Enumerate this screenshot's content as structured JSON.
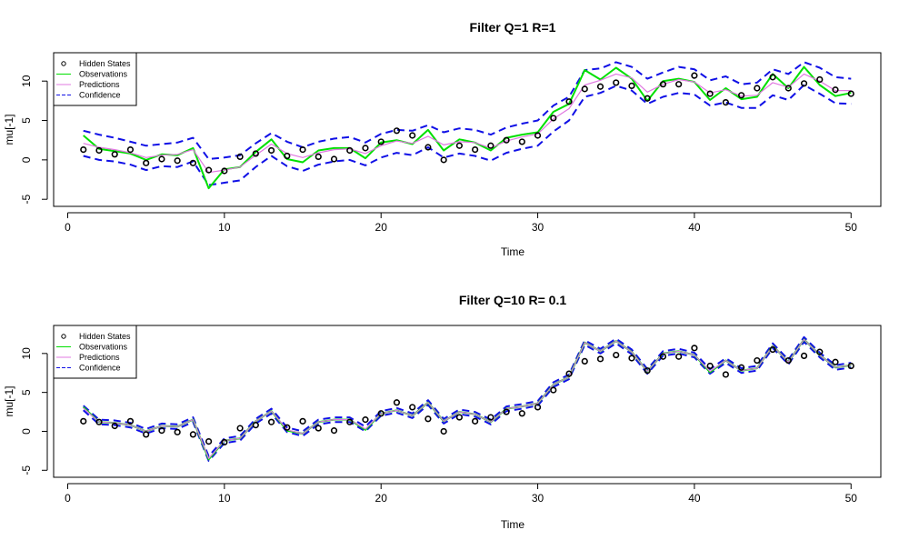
{
  "colors": {
    "hidden_states": "#000000",
    "observations": "#00e000",
    "predictions": "#e078e0",
    "confidence": "#1010e6",
    "frame": "#000000"
  },
  "chart_data": [
    {
      "type": "line",
      "title": "Filter Q=1 R=1",
      "xlabel": "Time",
      "ylabel": "mu[-1]",
      "xlim": [
        -0.9,
        51.9
      ],
      "ylim": [
        -5.9,
        13.6
      ],
      "xticks": [
        0,
        10,
        20,
        30,
        40,
        50
      ],
      "yticks": [
        -5,
        0,
        5,
        10
      ],
      "legend": {
        "position": "top-left",
        "entries": [
          {
            "name": "Hidden States",
            "style": "point"
          },
          {
            "name": "Observations",
            "style": "line"
          },
          {
            "name": "Predictions",
            "style": "line"
          },
          {
            "name": "Confidence",
            "style": "dashed"
          }
        ]
      },
      "x": [
        1,
        2,
        3,
        4,
        5,
        6,
        7,
        8,
        9,
        10,
        11,
        12,
        13,
        14,
        15,
        16,
        17,
        18,
        19,
        20,
        21,
        22,
        23,
        24,
        25,
        26,
        27,
        28,
        29,
        30,
        31,
        32,
        33,
        34,
        35,
        36,
        37,
        38,
        39,
        40,
        41,
        42,
        43,
        44,
        45,
        46,
        47,
        48,
        49,
        50
      ],
      "series": [
        {
          "name": "Hidden States",
          "style": "point",
          "values": [
            1.3,
            1.2,
            0.7,
            1.3,
            -0.4,
            0.1,
            -0.1,
            -0.4,
            -1.3,
            -1.4,
            0.4,
            0.8,
            1.2,
            0.5,
            1.3,
            0.4,
            0.1,
            1.2,
            1.5,
            2.3,
            3.7,
            3.1,
            1.6,
            0.0,
            1.8,
            1.3,
            1.8,
            2.5,
            2.3,
            3.1,
            5.3,
            7.4,
            9.0,
            9.3,
            9.8,
            9.4,
            7.8,
            9.6,
            9.6,
            10.7,
            8.4,
            7.3,
            8.2,
            9.1,
            10.5,
            9.1,
            9.7,
            10.2,
            8.9,
            8.4
          ]
        },
        {
          "name": "Observations",
          "style": "line",
          "values": [
            3.1,
            1.4,
            1.1,
            0.8,
            0.0,
            0.7,
            0.6,
            1.5,
            -3.6,
            -1.2,
            -0.9,
            1.0,
            2.6,
            0.1,
            -0.3,
            1.2,
            1.5,
            1.5,
            0.2,
            2.2,
            2.5,
            2.0,
            3.8,
            1.2,
            2.6,
            2.2,
            1.2,
            2.8,
            3.2,
            3.5,
            6.1,
            7.1,
            11.4,
            10.2,
            11.7,
            10.3,
            7.5,
            10.0,
            10.3,
            9.9,
            7.6,
            9.1,
            7.7,
            8.0,
            10.9,
            9.1,
            11.8,
            9.5,
            8.1,
            8.5
          ]
        },
        {
          "name": "Predictions",
          "style": "line",
          "values": [
            2.1,
            1.6,
            1.3,
            0.9,
            0.3,
            0.6,
            0.7,
            1.3,
            -1.6,
            -1.3,
            -0.9,
            0.6,
            2.0,
            0.8,
            0.3,
            0.9,
            1.3,
            1.4,
            0.8,
            1.8,
            2.4,
            2.1,
            3.0,
            1.9,
            2.3,
            2.2,
            1.5,
            2.4,
            2.9,
            3.3,
            5.2,
            6.5,
            9.5,
            10.1,
            10.9,
            10.4,
            8.6,
            9.6,
            10.2,
            9.9,
            8.5,
            8.9,
            8.1,
            8.2,
            9.8,
            9.2,
            10.9,
            10.0,
            8.8,
            8.8
          ]
        },
        {
          "name": "Confidence",
          "style": "dashed",
          "values": [
            3.7,
            3.2,
            2.8,
            2.3,
            1.8,
            2.0,
            2.2,
            2.8,
            0.1,
            0.3,
            0.6,
            2.1,
            3.4,
            2.3,
            1.6,
            2.3,
            2.7,
            2.9,
            2.2,
            3.3,
            3.8,
            3.7,
            4.4,
            3.5,
            4.0,
            3.8,
            3.2,
            4.1,
            4.6,
            5.0,
            6.9,
            8.0,
            11.4,
            11.6,
            12.4,
            11.8,
            10.3,
            11.1,
            11.8,
            11.5,
            10.1,
            10.6,
            9.6,
            9.8,
            11.5,
            10.9,
            12.4,
            11.7,
            10.5,
            10.3
          ]
        },
        {
          "name": "Confidence",
          "style": "dashed",
          "values": [
            0.5,
            0.0,
            -0.2,
            -0.6,
            -1.3,
            -0.8,
            -0.9,
            -0.2,
            -3.2,
            -2.9,
            -2.6,
            -0.9,
            0.5,
            -0.8,
            -1.4,
            -0.6,
            -0.2,
            0.0,
            -0.7,
            0.3,
            0.9,
            0.6,
            1.6,
            0.3,
            0.8,
            0.5,
            -0.1,
            0.9,
            1.4,
            1.8,
            3.6,
            5.0,
            8.0,
            8.5,
            9.4,
            8.8,
            7.1,
            8.0,
            8.5,
            8.3,
            6.9,
            7.3,
            6.6,
            6.6,
            8.2,
            7.6,
            9.5,
            8.4,
            7.2,
            7.1
          ]
        }
      ]
    },
    {
      "type": "line",
      "title": "Filter Q=10 R= 0.1",
      "xlabel": "Time",
      "ylabel": "mu[-1]",
      "xlim": [
        -0.9,
        51.9
      ],
      "ylim": [
        -5.9,
        13.6
      ],
      "xticks": [
        0,
        10,
        20,
        30,
        40,
        50
      ],
      "yticks": [
        -5,
        0,
        5,
        10
      ],
      "legend": {
        "position": "top-left",
        "entries": [
          {
            "name": "Hidden States",
            "style": "point"
          },
          {
            "name": "Observations",
            "style": "line"
          },
          {
            "name": "Predictions",
            "style": "line"
          },
          {
            "name": "Confidence",
            "style": "dashed"
          }
        ]
      },
      "x": [
        1,
        2,
        3,
        4,
        5,
        6,
        7,
        8,
        9,
        10,
        11,
        12,
        13,
        14,
        15,
        16,
        17,
        18,
        19,
        20,
        21,
        22,
        23,
        24,
        25,
        26,
        27,
        28,
        29,
        30,
        31,
        32,
        33,
        34,
        35,
        36,
        37,
        38,
        39,
        40,
        41,
        42,
        43,
        44,
        45,
        46,
        47,
        48,
        49,
        50
      ],
      "series": [
        {
          "name": "Hidden States",
          "style": "point",
          "values": [
            1.3,
            1.2,
            0.7,
            1.3,
            -0.4,
            0.1,
            -0.1,
            -0.4,
            -1.3,
            -1.4,
            0.4,
            0.8,
            1.2,
            0.5,
            1.3,
            0.4,
            0.1,
            1.2,
            1.5,
            2.3,
            3.7,
            3.1,
            1.6,
            0.0,
            1.8,
            1.3,
            1.8,
            2.5,
            2.3,
            3.1,
            5.3,
            7.4,
            9.0,
            9.3,
            9.8,
            9.4,
            7.8,
            9.6,
            9.6,
            10.7,
            8.4,
            7.3,
            8.2,
            9.1,
            10.5,
            9.1,
            9.7,
            10.2,
            8.9,
            8.4
          ]
        },
        {
          "name": "Observations",
          "style": "line",
          "values": [
            3.1,
            1.2,
            1.1,
            0.8,
            0.0,
            0.7,
            0.6,
            1.5,
            -3.6,
            -1.2,
            -0.9,
            1.3,
            2.6,
            0.1,
            -0.3,
            1.2,
            1.5,
            1.5,
            0.2,
            2.3,
            2.7,
            2.0,
            3.7,
            1.3,
            2.5,
            2.2,
            1.2,
            2.9,
            3.2,
            3.6,
            6.0,
            7.0,
            11.4,
            10.3,
            11.6,
            10.2,
            7.7,
            10.0,
            10.3,
            9.8,
            7.6,
            9.1,
            7.8,
            8.1,
            11.0,
            8.9,
            11.8,
            9.8,
            8.2,
            8.5
          ]
        },
        {
          "name": "Predictions",
          "style": "line",
          "values": [
            3.0,
            1.2,
            1.1,
            0.8,
            0.0,
            0.7,
            0.6,
            1.5,
            -3.5,
            -1.2,
            -0.9,
            1.3,
            2.6,
            0.2,
            -0.3,
            1.2,
            1.5,
            1.5,
            0.3,
            2.3,
            2.7,
            2.0,
            3.7,
            1.3,
            2.5,
            2.2,
            1.2,
            2.9,
            3.2,
            3.6,
            6.0,
            7.0,
            11.4,
            10.3,
            11.6,
            10.2,
            7.7,
            10.0,
            10.3,
            9.8,
            7.7,
            9.1,
            7.8,
            8.1,
            11.0,
            8.9,
            11.8,
            9.8,
            8.2,
            8.5
          ]
        },
        {
          "name": "Confidence",
          "style": "dashed",
          "values": [
            3.3,
            1.5,
            1.4,
            1.1,
            0.3,
            1.0,
            0.9,
            1.8,
            -3.2,
            -0.9,
            -0.6,
            1.6,
            2.9,
            0.5,
            0.0,
            1.5,
            1.8,
            1.8,
            0.6,
            2.6,
            3.0,
            2.3,
            4.0,
            1.6,
            2.8,
            2.5,
            1.5,
            3.2,
            3.5,
            3.9,
            6.3,
            7.3,
            11.7,
            10.6,
            11.9,
            10.5,
            8.0,
            10.3,
            10.6,
            10.1,
            8.0,
            9.4,
            8.1,
            8.4,
            11.3,
            9.2,
            12.1,
            10.1,
            8.5,
            8.8
          ]
        },
        {
          "name": "Confidence",
          "style": "dashed",
          "values": [
            2.7,
            0.9,
            0.8,
            0.5,
            -0.3,
            0.4,
            0.3,
            1.2,
            -3.8,
            -1.5,
            -1.2,
            1.0,
            2.3,
            -0.1,
            -0.6,
            0.9,
            1.2,
            1.2,
            0.0,
            2.0,
            2.4,
            1.7,
            3.4,
            1.0,
            2.2,
            1.9,
            0.9,
            2.6,
            2.9,
            3.3,
            5.7,
            6.7,
            11.1,
            10.0,
            11.3,
            9.9,
            7.4,
            9.7,
            10.0,
            9.5,
            7.4,
            8.8,
            7.5,
            7.8,
            10.7,
            8.6,
            11.5,
            9.5,
            7.9,
            8.2
          ]
        }
      ]
    }
  ]
}
